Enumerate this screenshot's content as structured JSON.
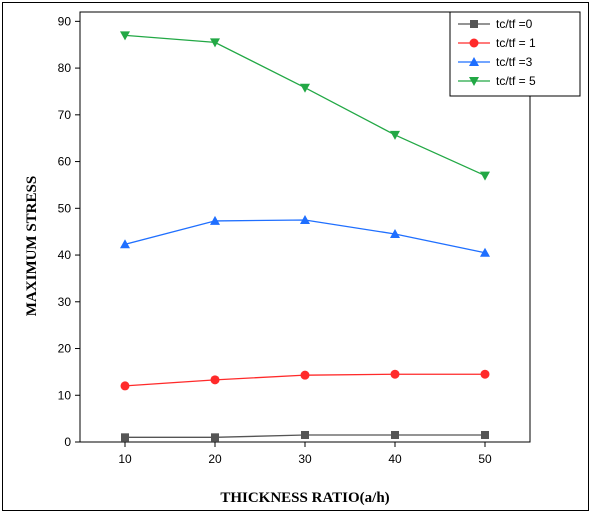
{
  "chart_data": {
    "type": "line",
    "title": "",
    "xlabel": "THICKNESS RATIO(a/h)",
    "ylabel": "MAXIMUM  STRESS",
    "x": [
      10,
      20,
      30,
      40,
      50
    ],
    "xticks": [
      10,
      20,
      30,
      40,
      50
    ],
    "yticks": [
      0,
      10,
      20,
      30,
      40,
      50,
      60,
      70,
      80,
      90
    ],
    "xlim": [
      5,
      55
    ],
    "ylim": [
      0,
      92
    ],
    "grid": false,
    "legend_position": "top-right",
    "series": [
      {
        "name": "tc/tf =0",
        "values": [
          1.0,
          1.0,
          1.5,
          1.5,
          1.5
        ],
        "color": "#555555",
        "marker": "square"
      },
      {
        "name": "tc/tf = 1",
        "values": [
          12.0,
          13.3,
          14.3,
          14.5,
          14.5
        ],
        "color": "#ff2a2a",
        "marker": "circle"
      },
      {
        "name": "tc/tf =3",
        "values": [
          42.3,
          47.3,
          47.5,
          44.5,
          40.5
        ],
        "color": "#1f6fff",
        "marker": "triangle-up"
      },
      {
        "name": "tc/tf = 5",
        "values": [
          87.0,
          85.5,
          75.8,
          65.7,
          57.0
        ],
        "color": "#22a845",
        "marker": "triangle-down"
      }
    ]
  }
}
